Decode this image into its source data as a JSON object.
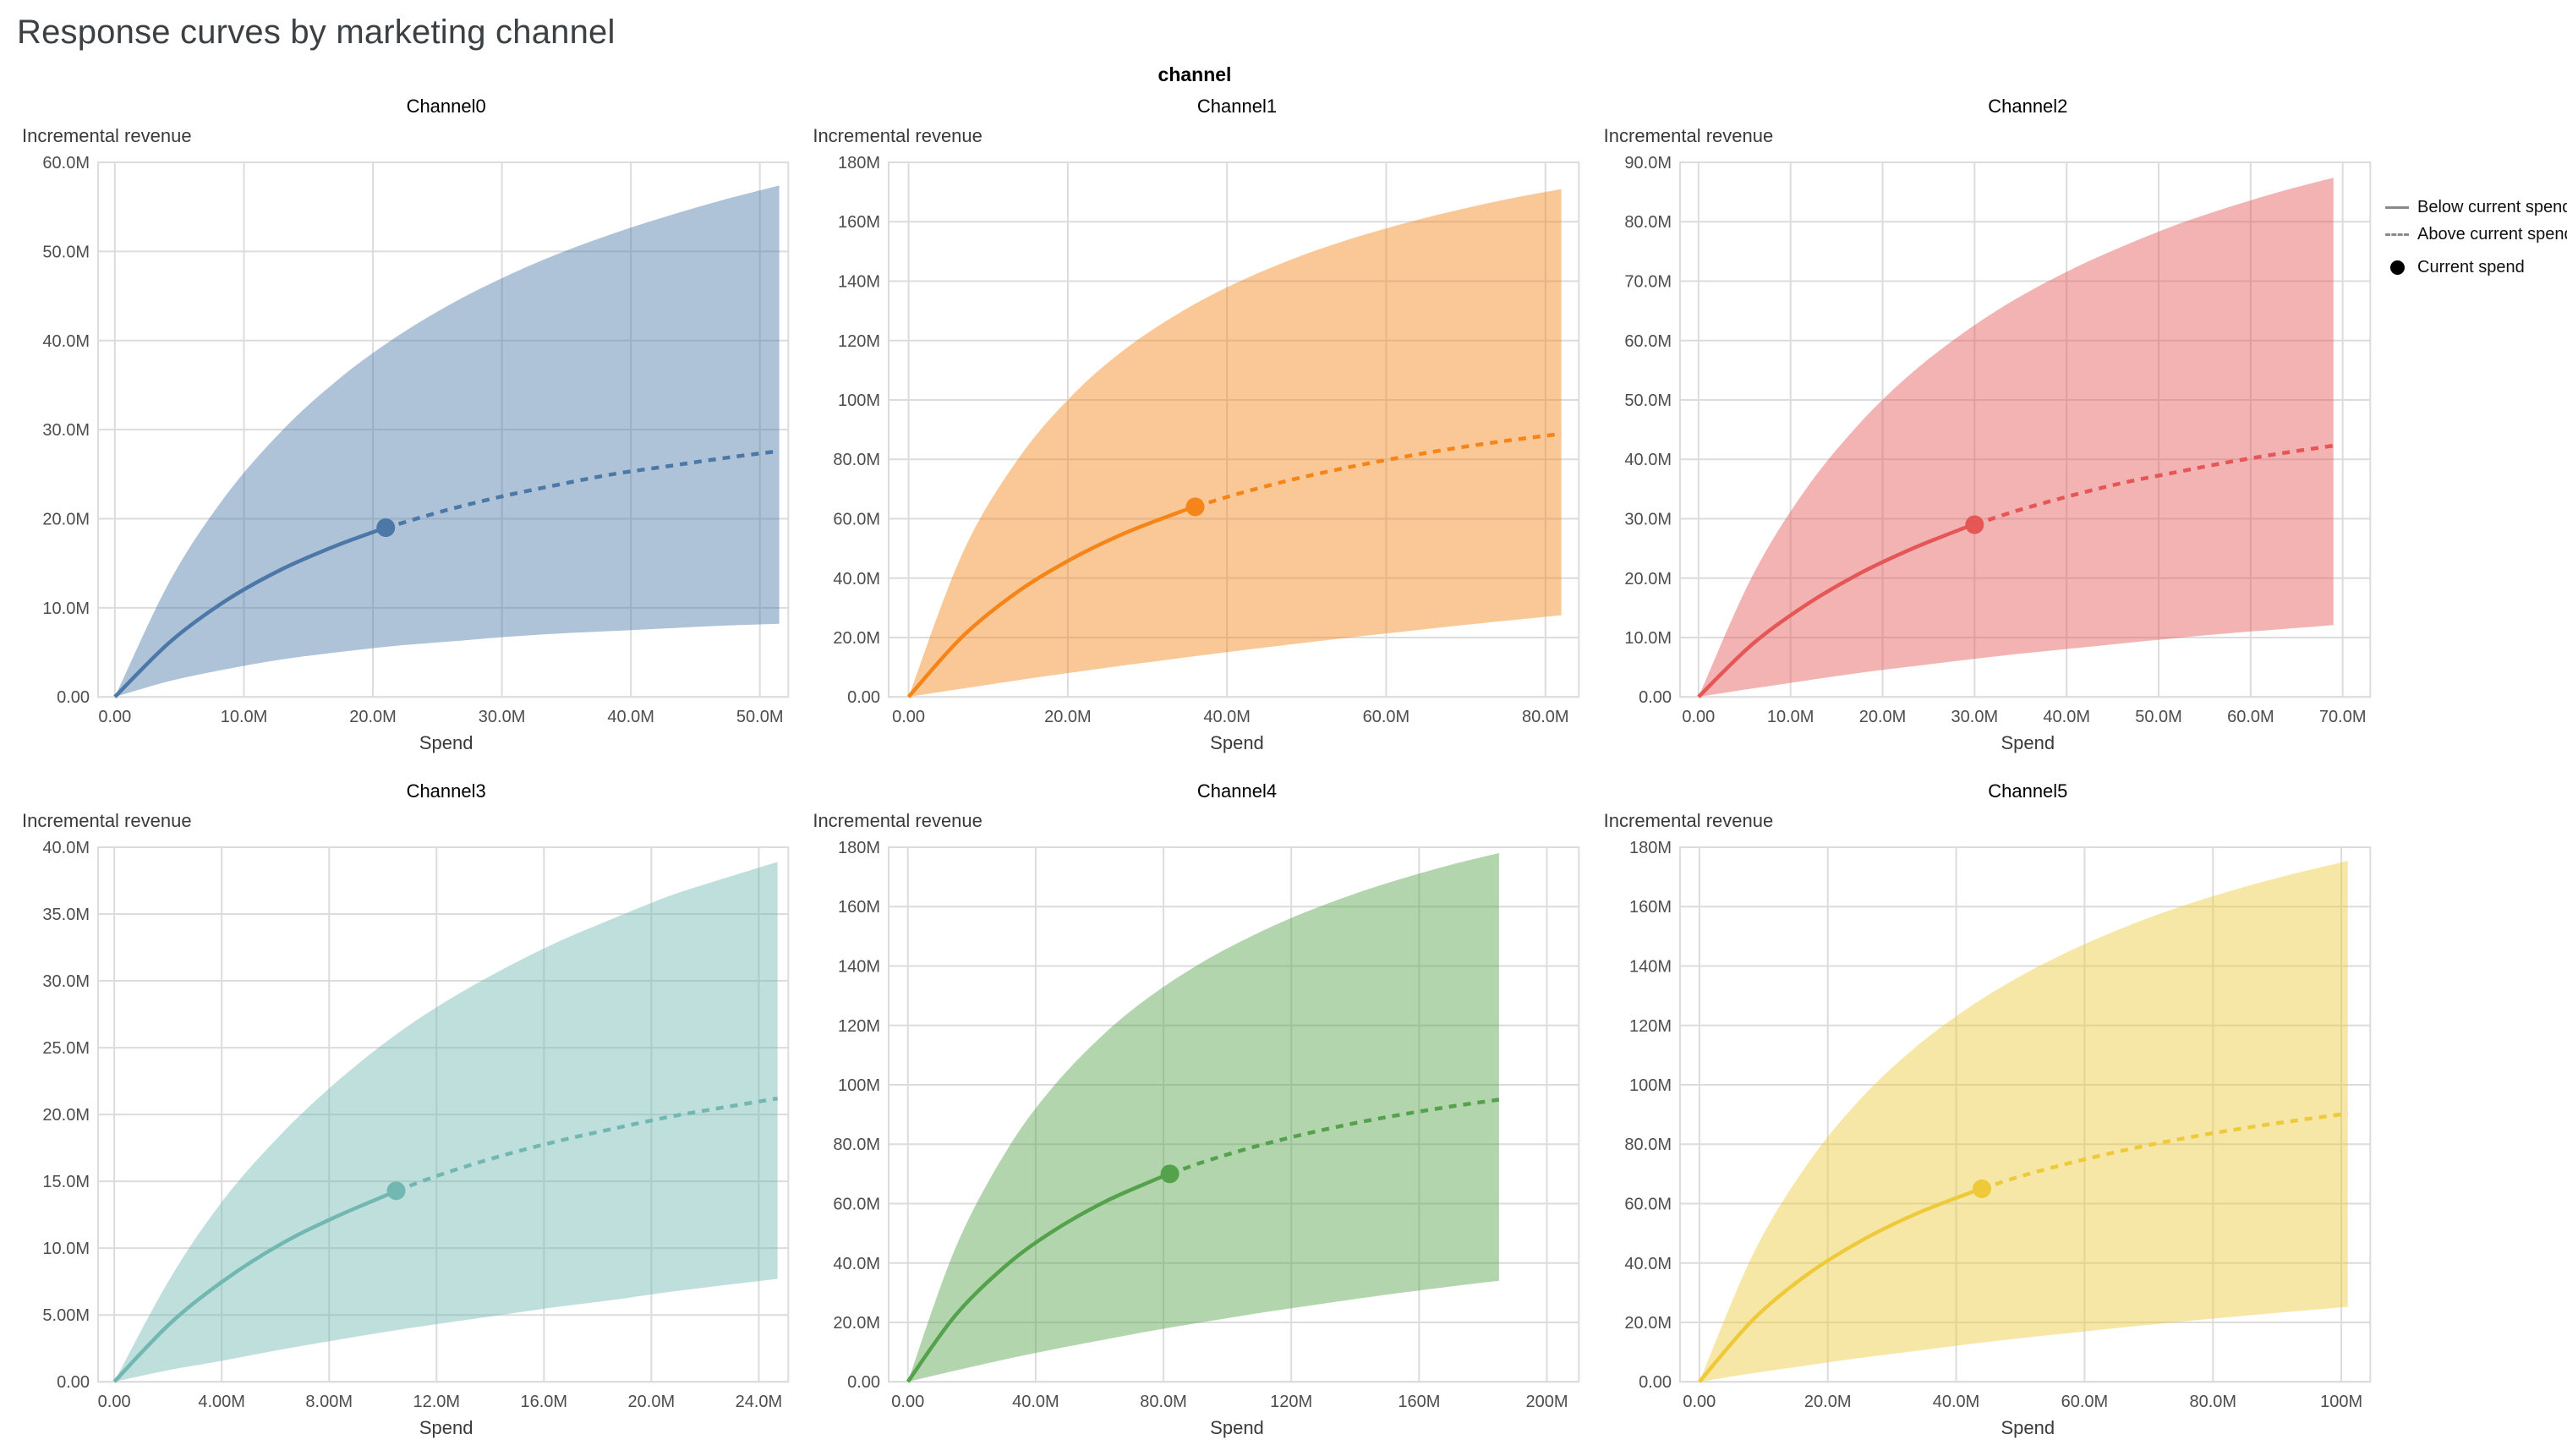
{
  "page": {
    "title": "Response curves by marketing channel",
    "facet_title": "channel"
  },
  "legend": {
    "position": "top-right",
    "items": [
      {
        "label": "Below current spend",
        "symbol": "solid-line",
        "color": "#8a8a8a"
      },
      {
        "label": "Above current spend",
        "symbol": "dashed-line",
        "color": "#8a8a8a"
      },
      {
        "label": "Current spend",
        "symbol": "dot",
        "color": "#000000"
      }
    ]
  },
  "chart_data": [
    {
      "type": "area",
      "title": "Channel0",
      "xlabel": "Spend",
      "ylabel": "Incremental revenue",
      "unit": "M",
      "color": "#4c78a8",
      "xlim": [
        -1.3,
        52.2
      ],
      "ylim": [
        0,
        60
      ],
      "x_ticks": [
        0,
        10,
        20,
        30,
        40,
        50
      ],
      "x_tick_labels": [
        "0.00",
        "10.0M",
        "20.0M",
        "30.0M",
        "40.0M",
        "50.0M"
      ],
      "y_ticks": [
        0,
        10,
        20,
        30,
        40,
        50,
        60
      ],
      "y_tick_labels": [
        "0.00",
        "10.0M",
        "20.0M",
        "30.0M",
        "40.0M",
        "50.0M",
        "60.0M"
      ],
      "x": [
        0,
        4.3,
        8.6,
        12.9,
        17.2,
        21.5,
        25.8,
        30,
        34.3,
        38.6,
        42.9,
        47.2,
        51.5
      ],
      "mean": [
        0,
        6.2,
        10.8,
        14.3,
        17,
        19.2,
        21,
        22.5,
        23.8,
        25,
        25.9,
        26.8,
        27.6
      ],
      "upper": [
        0,
        13.1,
        22.6,
        29.8,
        35.5,
        40.1,
        43.9,
        47,
        49.7,
        52,
        54,
        55.8,
        57.4
      ],
      "lower": [
        0,
        1.8,
        3.1,
        4.2,
        5,
        5.7,
        6.2,
        6.7,
        7.1,
        7.4,
        7.7,
        8,
        8.2
      ],
      "current_spend": {
        "x": 21,
        "y": 19
      }
    },
    {
      "type": "area",
      "title": "Channel1",
      "xlabel": "Spend",
      "ylabel": "Incremental revenue",
      "unit": "M",
      "color": "#f58518",
      "xlim": [
        -2.5,
        84.2
      ],
      "ylim": [
        0,
        180
      ],
      "x_ticks": [
        0,
        20,
        40,
        60,
        80
      ],
      "x_tick_labels": [
        "0.00",
        "20.0M",
        "40.0M",
        "60.0M",
        "80.0M"
      ],
      "y_ticks": [
        0,
        20,
        40,
        60,
        80,
        100,
        120,
        140,
        160,
        180
      ],
      "y_tick_labels": [
        "0.00",
        "20.0M",
        "40.0M",
        "60.0M",
        "80.0M",
        "100M",
        "120M",
        "140M",
        "160M",
        "180M"
      ],
      "x": [
        0,
        6.8,
        13.7,
        20.5,
        27.3,
        34.2,
        41,
        47.8,
        54.7,
        61.5,
        68.3,
        75.2,
        82
      ],
      "mean": [
        0,
        20.4,
        35.4,
        46.5,
        55.3,
        62.4,
        68.1,
        72.9,
        77,
        80.5,
        83.6,
        86.3,
        88.6
      ],
      "upper": [
        0,
        48.5,
        79.9,
        101.4,
        117.3,
        129.6,
        139.2,
        147,
        153.5,
        158.9,
        163.5,
        167.6,
        171
      ],
      "lower": [
        0,
        2.8,
        5.6,
        8.2,
        10.7,
        13.1,
        15.4,
        17.6,
        19.8,
        21.8,
        23.8,
        25.7,
        27.5
      ],
      "current_spend": {
        "x": 36,
        "y": 64
      }
    },
    {
      "type": "area",
      "title": "Channel2",
      "xlabel": "Spend",
      "ylabel": "Incremental revenue",
      "unit": "M",
      "color": "#e45756",
      "xlim": [
        -2,
        73
      ],
      "ylim": [
        0,
        90
      ],
      "x_ticks": [
        0,
        10,
        20,
        30,
        40,
        50,
        60,
        70
      ],
      "x_tick_labels": [
        "0.00",
        "10.0M",
        "20.0M",
        "30.0M",
        "40.0M",
        "50.0M",
        "60.0M",
        "70.0M"
      ],
      "y_ticks": [
        0,
        10,
        20,
        30,
        40,
        50,
        60,
        70,
        80,
        90
      ],
      "y_tick_labels": [
        "0.00",
        "10.0M",
        "20.0M",
        "30.0M",
        "40.0M",
        "50.0M",
        "60.0M",
        "70.0M",
        "80.0M",
        "90.0M"
      ],
      "x": [
        0,
        5.8,
        11.5,
        17.3,
        23,
        28.8,
        34.5,
        40.3,
        46,
        51.8,
        57.5,
        63.3,
        69
      ],
      "mean": [
        0,
        8.8,
        15.3,
        20.6,
        24.8,
        28.4,
        31.3,
        33.8,
        36,
        37.8,
        39.5,
        41,
        42.3
      ],
      "upper": [
        0,
        20.2,
        34.6,
        45.7,
        54.3,
        61.3,
        67,
        71.8,
        75.8,
        79.4,
        82.4,
        85.1,
        87.4
      ],
      "lower": [
        0,
        1.4,
        2.7,
        4,
        5.1,
        6.2,
        7.2,
        8.1,
        9,
        9.9,
        10.7,
        11.4,
        12.1
      ],
      "current_spend": {
        "x": 30,
        "y": 29
      }
    },
    {
      "type": "area",
      "title": "Channel3",
      "xlabel": "Spend",
      "ylabel": "Incremental revenue",
      "unit": "M",
      "color": "#72b7b2",
      "xlim": [
        -0.6,
        25.1
      ],
      "ylim": [
        0,
        40
      ],
      "x_ticks": [
        0,
        4,
        8,
        12,
        16,
        20,
        24
      ],
      "x_tick_labels": [
        "0.00",
        "4.00M",
        "8.00M",
        "12.0M",
        "16.0M",
        "20.0M",
        "24.0M"
      ],
      "y_ticks": [
        0,
        5,
        10,
        15,
        20,
        25,
        30,
        35,
        40
      ],
      "y_tick_labels": [
        "0.00",
        "5.00M",
        "10.0M",
        "15.0M",
        "20.0M",
        "25.0M",
        "30.0M",
        "35.0M",
        "40.0M"
      ],
      "x": [
        0,
        2.1,
        4.1,
        6.2,
        8.2,
        10.3,
        12.3,
        14.4,
        16.5,
        18.5,
        20.6,
        22.6,
        24.7
      ],
      "mean": [
        0,
        4.4,
        7.6,
        10.3,
        12.3,
        14.1,
        15.6,
        16.9,
        18,
        18.9,
        19.8,
        20.5,
        21.2
      ],
      "upper": [
        0,
        7.8,
        13.7,
        18.5,
        22.3,
        25.7,
        28.4,
        30.8,
        32.9,
        34.6,
        36.3,
        37.6,
        38.9
      ],
      "lower": [
        0,
        0.9,
        1.6,
        2.4,
        3.1,
        3.8,
        4.4,
        5,
        5.6,
        6.1,
        6.7,
        7.2,
        7.7
      ],
      "current_spend": {
        "x": 10.5,
        "y": 14.3
      }
    },
    {
      "type": "area",
      "title": "Channel4",
      "xlabel": "Spend",
      "ylabel": "Incremental revenue",
      "unit": "M",
      "color": "#54a24b",
      "xlim": [
        -6,
        210
      ],
      "ylim": [
        0,
        180
      ],
      "x_ticks": [
        0,
        40,
        80,
        120,
        160,
        200
      ],
      "x_tick_labels": [
        "0.00",
        "40.0M",
        "80.0M",
        "120M",
        "160M",
        "200M"
      ],
      "y_ticks": [
        0,
        20,
        40,
        60,
        80,
        100,
        120,
        140,
        160,
        180
      ],
      "y_tick_labels": [
        "0.00",
        "20.0M",
        "40.0M",
        "60.0M",
        "80.0M",
        "100M",
        "120M",
        "140M",
        "160M",
        "180M"
      ],
      "x": [
        0,
        15,
        31,
        46,
        62,
        77,
        93,
        108,
        123,
        139,
        154,
        170,
        185
      ],
      "mean": [
        0,
        22.5,
        39.4,
        51.1,
        60.8,
        67.9,
        74.2,
        79,
        83.1,
        86.9,
        89.9,
        92.7,
        95
      ],
      "upper": [
        0,
        45.3,
        78,
        100,
        117.7,
        130.7,
        141.8,
        150.3,
        157.5,
        164,
        169.2,
        174.1,
        178
      ],
      "lower": [
        0,
        3.8,
        7.7,
        11,
        14.3,
        17.3,
        20.2,
        22.8,
        25.2,
        27.7,
        29.9,
        32.1,
        34
      ],
      "current_spend": {
        "x": 82,
        "y": 70
      }
    },
    {
      "type": "area",
      "title": "Channel5",
      "xlabel": "Spend",
      "ylabel": "Incremental revenue",
      "unit": "M",
      "color": "#eeca3b",
      "xlim": [
        -3,
        104.5
      ],
      "ylim": [
        0,
        180
      ],
      "x_ticks": [
        0,
        20,
        40,
        60,
        80,
        100
      ],
      "x_tick_labels": [
        "0.00",
        "20.0M",
        "40.0M",
        "60.0M",
        "80.0M",
        "100M"
      ],
      "y_ticks": [
        0,
        20,
        40,
        60,
        80,
        100,
        120,
        140,
        160,
        180
      ],
      "y_tick_labels": [
        "0.00",
        "20.0M",
        "40.0M",
        "60.0M",
        "80.0M",
        "100M",
        "120M",
        "140M",
        "160M",
        "180M"
      ],
      "x": [
        0,
        8.4,
        16.8,
        25.3,
        33.7,
        42.1,
        50.5,
        58.9,
        67.3,
        75.8,
        84.2,
        92.6,
        101
      ],
      "mean": [
        0,
        21,
        36.1,
        47.6,
        56.5,
        63.6,
        69.5,
        74.3,
        78.5,
        82.1,
        85.2,
        87.9,
        90.3
      ],
      "upper": [
        0,
        43.1,
        73.2,
        95.7,
        112.7,
        126.2,
        137.2,
        146.3,
        154,
        160.6,
        166.2,
        171.1,
        175.4
      ],
      "lower": [
        0,
        2.9,
        5.5,
        8.1,
        10.4,
        12.7,
        14.8,
        16.7,
        18.6,
        20.4,
        22.1,
        23.7,
        25.2
      ],
      "current_spend": {
        "x": 44,
        "y": 65
      }
    }
  ]
}
